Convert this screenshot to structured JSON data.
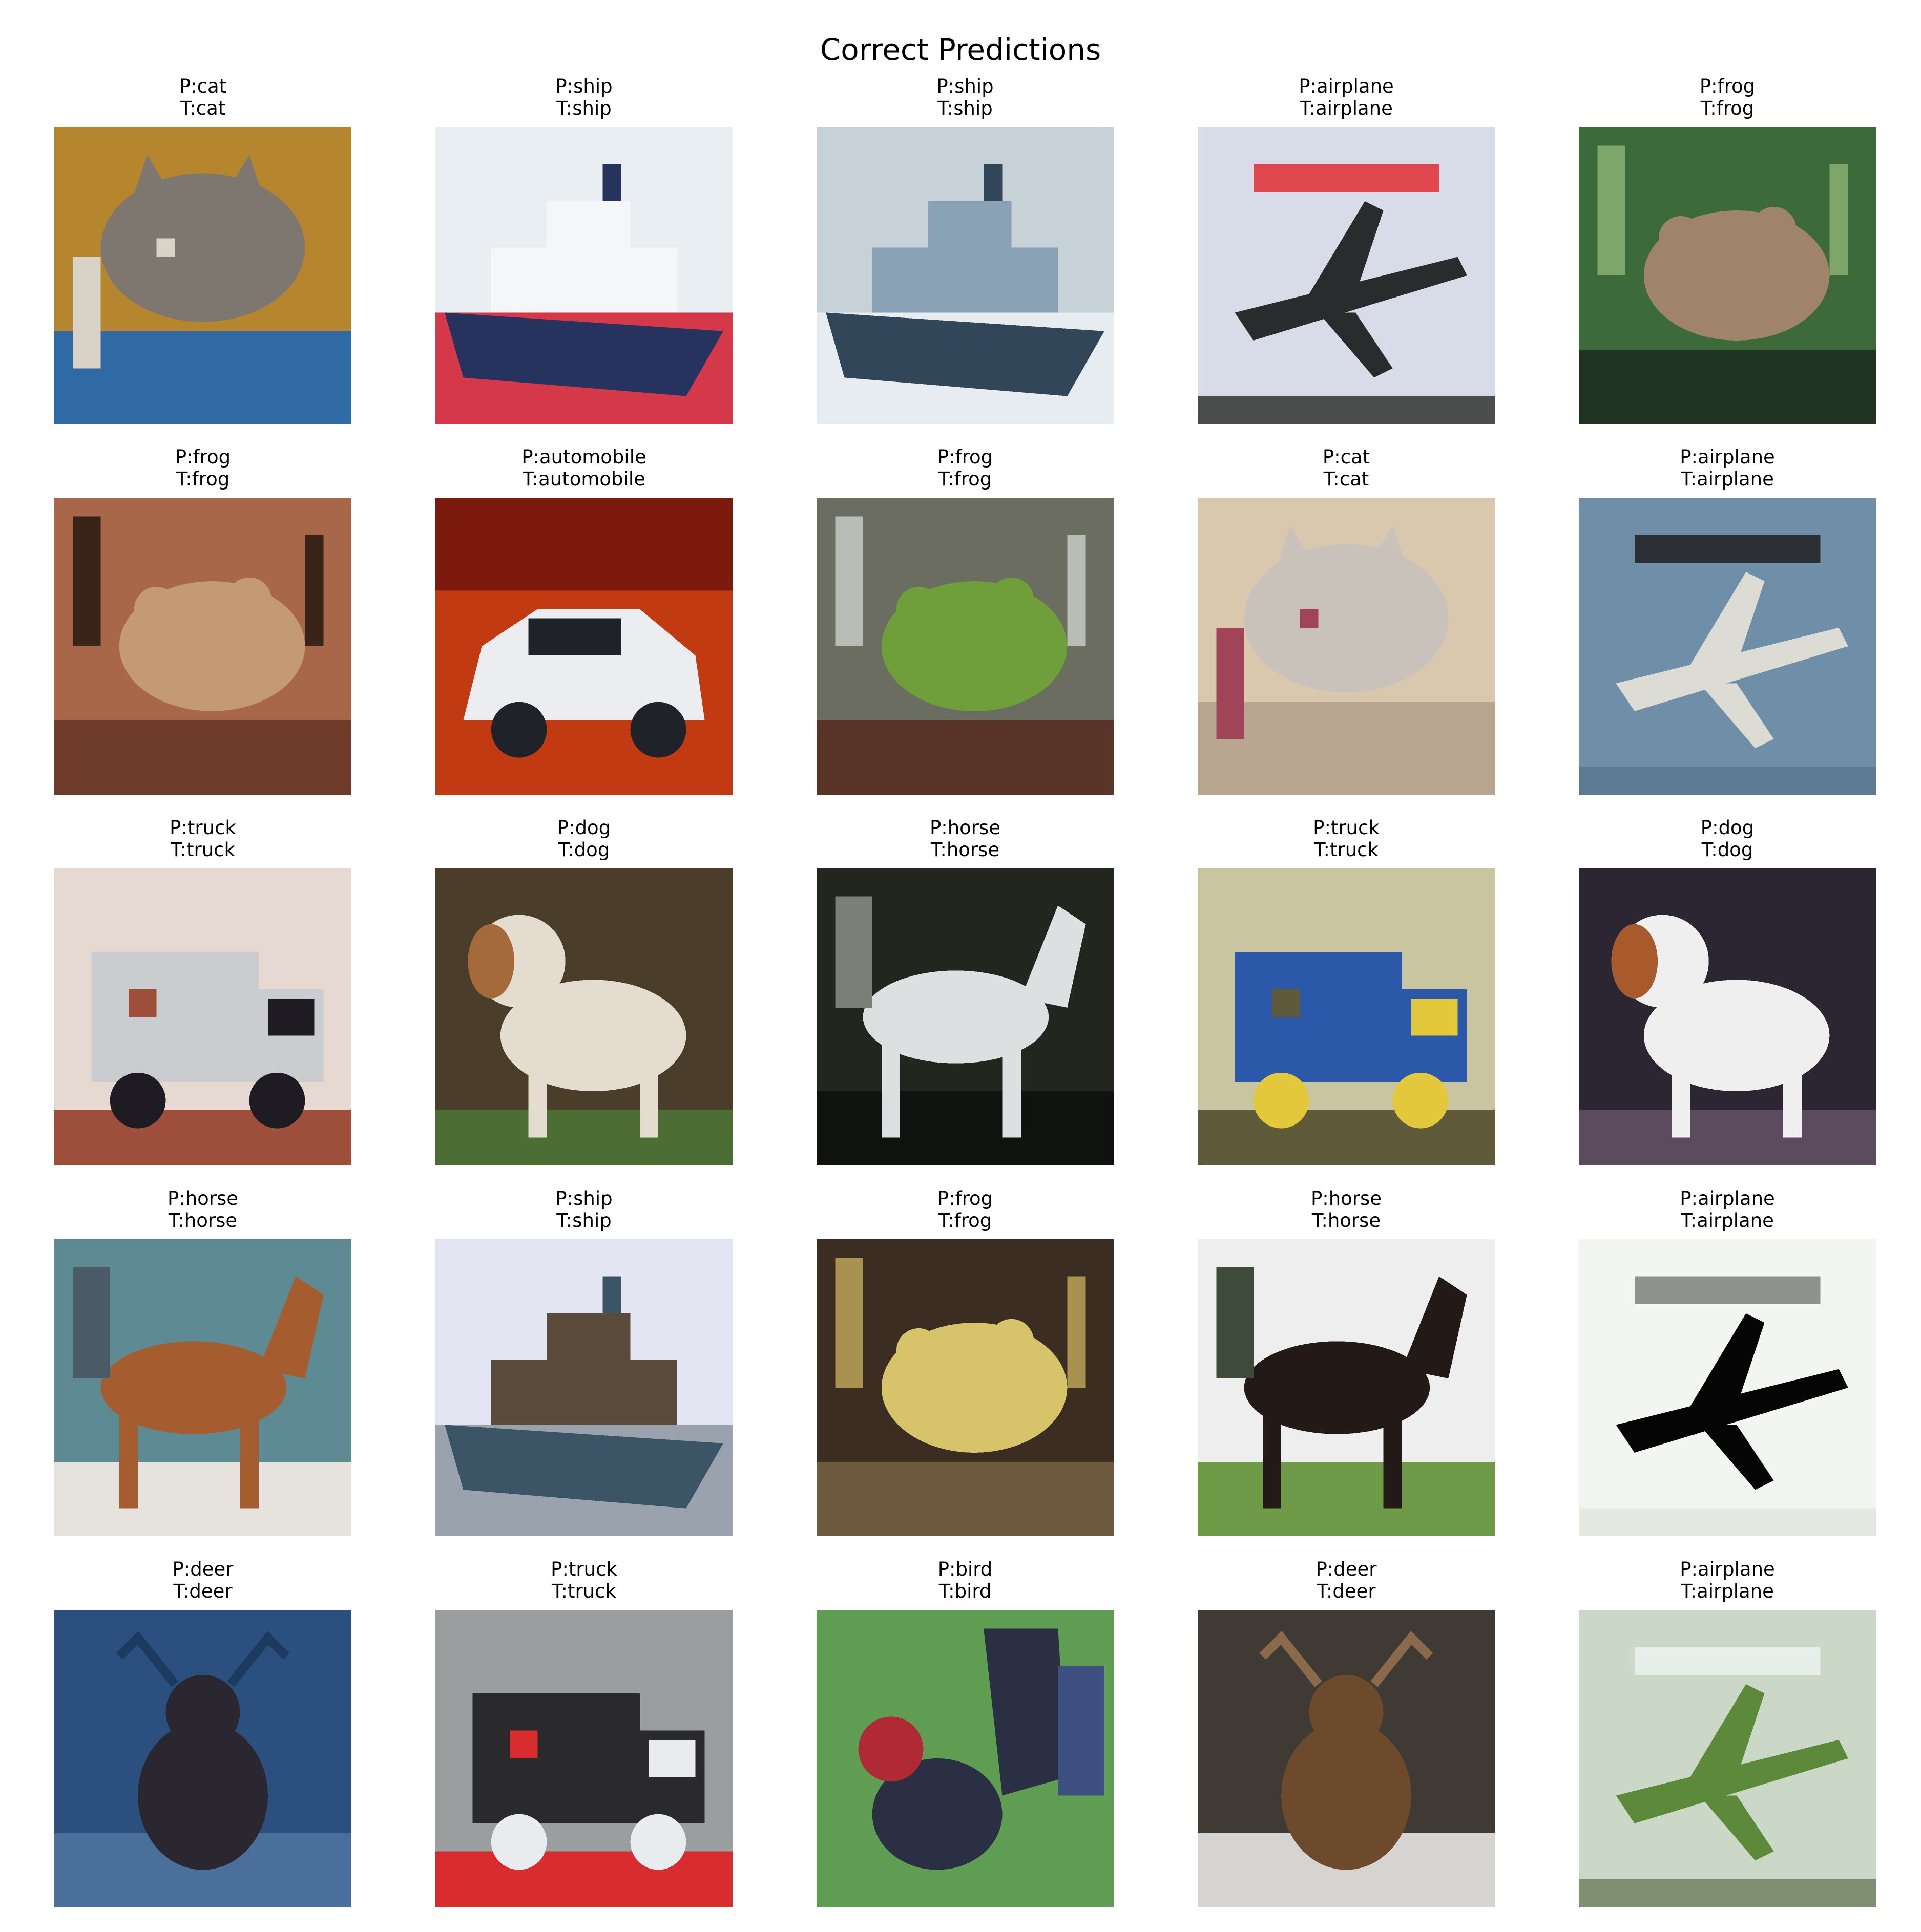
{
  "title": "Correct Predictions",
  "samples": [
    {
      "pred": "P:cat",
      "true": "T:cat",
      "subject": "cat",
      "bg": "#b5862e",
      "mid": "#2f6aa5",
      "fg": "#7d7770",
      "accent": "#d9d2c7",
      "icon": "cat-photo-icon"
    },
    {
      "pred": "P:ship",
      "true": "T:ship",
      "subject": "ship",
      "bg": "#e9eef2",
      "mid": "#27335f",
      "fg": "#f4f6f8",
      "accent": "#d43849",
      "icon": "ship-photo-icon"
    },
    {
      "pred": "P:ship",
      "true": "T:ship",
      "subject": "ship",
      "bg": "#c7d1d8",
      "mid": "#32465a",
      "fg": "#8aa2b5",
      "accent": "#e6ecf0",
      "icon": "ship-photo-icon"
    },
    {
      "pred": "P:airplane",
      "true": "T:airplane",
      "subject": "airplane",
      "bg": "#d8dbe8",
      "mid": "#4b4d4c",
      "fg": "#2a2b2c",
      "accent": "#e0474f",
      "icon": "airplane-photo-icon"
    },
    {
      "pred": "P:frog",
      "true": "T:frog",
      "subject": "frog",
      "bg": "#3d6a3b",
      "mid": "#1f3320",
      "fg": "#a08469",
      "accent": "#7ea56a",
      "icon": "frog-photo-icon"
    },
    {
      "pred": "P:frog",
      "true": "T:frog",
      "subject": "frog",
      "bg": "#a86748",
      "mid": "#6e3b2a",
      "fg": "#c49a74",
      "accent": "#3a2318",
      "icon": "frog-photo-icon"
    },
    {
      "pred": "P:automobile",
      "true": "T:automobile",
      "subject": "automobile",
      "bg": "#c13a12",
      "mid": "#7c1a0e",
      "fg": "#ecedf0",
      "accent": "#1f2228",
      "icon": "automobile-photo-icon"
    },
    {
      "pred": "P:frog",
      "true": "T:frog",
      "subject": "frog",
      "bg": "#6b6d60",
      "mid": "#5a3426",
      "fg": "#6e9f3a",
      "accent": "#b8bdb5",
      "icon": "frog-photo-icon"
    },
    {
      "pred": "P:cat",
      "true": "T:cat",
      "subject": "cat",
      "bg": "#d9c7ae",
      "mid": "#b9a690",
      "fg": "#c9c2bb",
      "accent": "#a04558",
      "icon": "cat-photo-icon"
    },
    {
      "pred": "P:airplane",
      "true": "T:airplane",
      "subject": "airplane",
      "bg": "#6f8ea8",
      "mid": "#5c7a94",
      "fg": "#dcdcd4",
      "accent": "#2b2e33",
      "icon": "airplane-photo-icon"
    },
    {
      "pred": "P:truck",
      "true": "T:truck",
      "subject": "truck",
      "bg": "#e6d9d2",
      "mid": "#9d4f3c",
      "fg": "#c9cdd0",
      "accent": "#1f1b22",
      "icon": "truck-photo-icon"
    },
    {
      "pred": "P:dog",
      "true": "T:dog",
      "subject": "dog",
      "bg": "#4a3d2a",
      "mid": "#4c6e34",
      "fg": "#e5dcd0",
      "accent": "#a56a3a",
      "icon": "dog-photo-icon"
    },
    {
      "pred": "P:horse",
      "true": "T:horse",
      "subject": "horse",
      "bg": "#23251f",
      "mid": "#101210",
      "fg": "#dedfe0",
      "accent": "#7b7f77",
      "icon": "horse-photo-icon"
    },
    {
      "pred": "P:truck",
      "true": "T:truck",
      "subject": "truck",
      "bg": "#c9c5a0",
      "mid": "#5f5a3a",
      "fg": "#2b58a8",
      "accent": "#e2c83a",
      "icon": "truck-photo-icon"
    },
    {
      "pred": "P:dog",
      "true": "T:dog",
      "subject": "dog",
      "bg": "#2b2632",
      "mid": "#5c4b5f",
      "fg": "#efefef",
      "accent": "#a85a2c",
      "icon": "dog-photo-icon"
    },
    {
      "pred": "P:horse",
      "true": "T:horse",
      "subject": "horse",
      "bg": "#5d8a93",
      "mid": "#e6e3de",
      "fg": "#a55d2f",
      "accent": "#4b5b68",
      "icon": "horse-photo-icon"
    },
    {
      "pred": "P:ship",
      "true": "T:ship",
      "subject": "ship",
      "bg": "#e3e6f2",
      "mid": "#3b5466",
      "fg": "#5a4a3a",
      "accent": "#9aa2ad",
      "icon": "ship-photo-icon"
    },
    {
      "pred": "P:frog",
      "true": "T:frog",
      "subject": "frog",
      "bg": "#3b2d22",
      "mid": "#6e5a3e",
      "fg": "#d6c36a",
      "accent": "#a9914f",
      "icon": "frog-photo-icon"
    },
    {
      "pred": "P:horse",
      "true": "T:horse",
      "subject": "horse",
      "bg": "#eeeeee",
      "mid": "#6f9a48",
      "fg": "#231a17",
      "accent": "#3e4a3a",
      "icon": "horse-photo-icon"
    },
    {
      "pred": "P:airplane",
      "true": "T:airplane",
      "subject": "airplane",
      "bg": "#f3f5f0",
      "mid": "#e6e8e2",
      "fg": "#050505",
      "accent": "#8f918d",
      "icon": "airplane-photo-icon"
    },
    {
      "pred": "P:deer",
      "true": "T:deer",
      "subject": "deer",
      "bg": "#2b4f7e",
      "mid": "#1d3a61",
      "fg": "#2a2730",
      "accent": "#4a6f9a",
      "icon": "deer-photo-icon"
    },
    {
      "pred": "P:truck",
      "true": "T:truck",
      "subject": "truck",
      "bg": "#9b9e9e",
      "mid": "#d82c2e",
      "fg": "#2a2a2d",
      "accent": "#e9ecef",
      "icon": "truck-photo-icon"
    },
    {
      "pred": "P:bird",
      "true": "T:bird",
      "subject": "bird",
      "bg": "#5f9e52",
      "mid": "#2a2f44",
      "fg": "#b02a35",
      "accent": "#3e4f82",
      "icon": "bird-photo-icon"
    },
    {
      "pred": "P:deer",
      "true": "T:deer",
      "subject": "deer",
      "bg": "#3f3a33",
      "mid": "#8a6a4a",
      "fg": "#6d4a2c",
      "accent": "#d6d4d0",
      "icon": "deer-photo-icon"
    },
    {
      "pred": "P:airplane",
      "true": "T:airplane",
      "subject": "airplane",
      "bg": "#cbd8c8",
      "mid": "#7f8f72",
      "fg": "#5c8a3a",
      "accent": "#e6efe8",
      "icon": "airplane-photo-icon"
    }
  ]
}
